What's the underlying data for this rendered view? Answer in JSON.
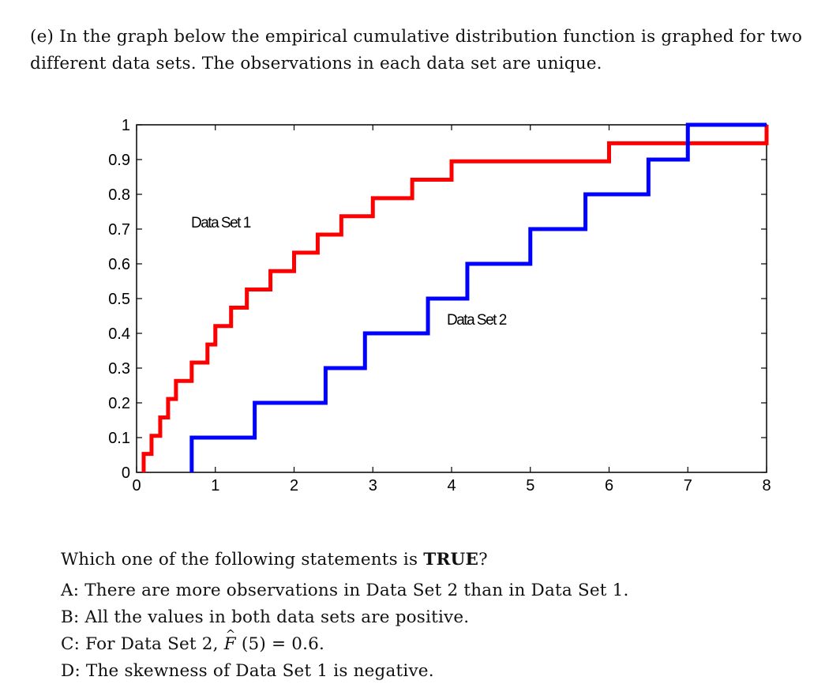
{
  "intro": {
    "label": "(e)",
    "text": "In the graph below the empirical cumulative distribution function is graphed for two different data sets. The observations in each data set are unique."
  },
  "chart_data": {
    "type": "line",
    "step": true,
    "title": "",
    "xlabel": "",
    "ylabel": "",
    "xlim": [
      0,
      8
    ],
    "ylim": [
      0,
      1
    ],
    "x_ticks": [
      "0",
      "1",
      "2",
      "3",
      "4",
      "5",
      "6",
      "7",
      "8"
    ],
    "y_ticks": [
      "0",
      "0.1",
      "0.2",
      "0.3",
      "0.4",
      "0.5",
      "0.6",
      "0.7",
      "0.8",
      "0.9",
      "1"
    ],
    "grid": false,
    "series": [
      {
        "name": "Data Set 1",
        "color": "#ff0000",
        "jumps_x": [
          0.09,
          0.19,
          0.3,
          0.4,
          0.5,
          0.7,
          0.9,
          1.0,
          1.2,
          1.4,
          1.7,
          2.0,
          2.3,
          2.6,
          3.0,
          3.5,
          4.0,
          6.0,
          8.0
        ],
        "levels_y": [
          0.053,
          0.105,
          0.158,
          0.211,
          0.263,
          0.316,
          0.368,
          0.421,
          0.474,
          0.526,
          0.579,
          0.632,
          0.684,
          0.737,
          0.789,
          0.842,
          0.895,
          0.947,
          1.0
        ]
      },
      {
        "name": "Data Set 2",
        "color": "#0000ff",
        "jumps_x": [
          0.7,
          1.5,
          2.4,
          2.9,
          3.7,
          4.2,
          5.0,
          5.7,
          6.5,
          7.0
        ],
        "levels_y": [
          0.1,
          0.2,
          0.3,
          0.4,
          0.5,
          0.6,
          0.7,
          0.8,
          0.9,
          1.0
        ]
      }
    ]
  },
  "question": {
    "prefix": "Which one of the following statements is ",
    "emphasis": "TRUE",
    "suffix": "?"
  },
  "options": {
    "a": "A: There are more observations in Data Set 2 than in Data Set 1.",
    "b": "B: All the values in both data sets are positive.",
    "c_prefix": "C: For Data Set 2, ",
    "c_symbol": "F",
    "c_suffix": " (5) = 0.6.",
    "d": "D: The skewness of Data Set 1 is negative."
  }
}
